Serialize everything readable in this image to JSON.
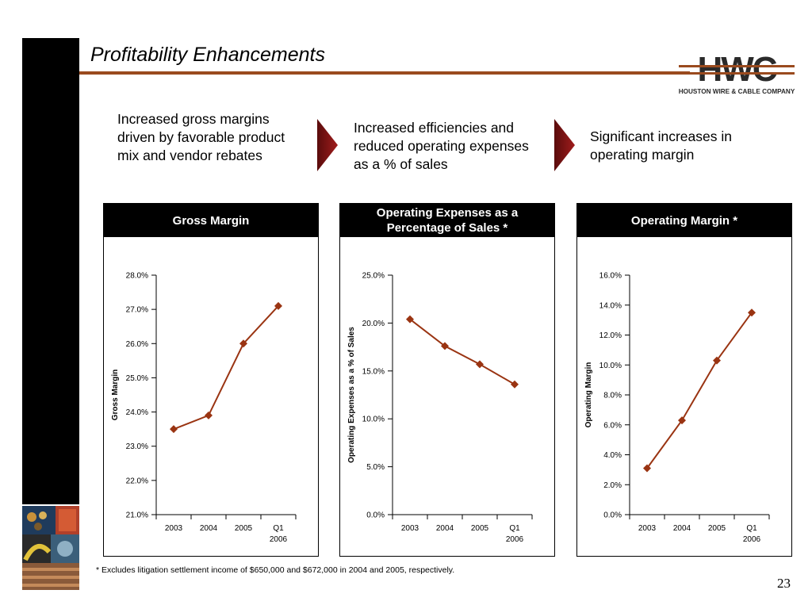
{
  "slide": {
    "title": "Profitability Enhancements",
    "page_number": "23",
    "footnote": "* Excludes litigation settlement income of $650,000 and $672,000 in 2004 and 2005, respectively."
  },
  "logo": {
    "name": "HWC",
    "tagline": "HOUSTON WIRE & CABLE COMPANY"
  },
  "points": [
    "Increased gross margins driven by favorable product mix and vendor rebates",
    "Increased efficiencies and reduced operating expenses as a % of sales",
    "Significant increases in operating margin"
  ],
  "colors": {
    "accent": "#9a4a1e",
    "series": "#9a3412",
    "arrow": "#8b1a1a"
  },
  "chart_data": [
    {
      "type": "line",
      "title": "Gross Margin",
      "ylabel": "Gross Margin",
      "categories": [
        "2003",
        "2004",
        "2005",
        "Q1 2006"
      ],
      "series": [
        {
          "values": [
            23.5,
            23.9,
            26.0,
            27.1
          ]
        }
      ],
      "ylim": [
        21.0,
        28.0
      ],
      "yticks": [
        "21.0%",
        "22.0%",
        "23.0%",
        "24.0%",
        "25.0%",
        "26.0%",
        "27.0%",
        "28.0%"
      ],
      "grid": false
    },
    {
      "type": "line",
      "title": "Operating Expenses as a Percentage of Sales *",
      "ylabel": "Operating Expenses as a % of Sales",
      "categories": [
        "2003",
        "2004",
        "2005",
        "Q1 2006"
      ],
      "series": [
        {
          "values": [
            20.4,
            17.6,
            15.7,
            13.6
          ]
        }
      ],
      "ylim": [
        0.0,
        25.0
      ],
      "yticks": [
        "0.0%",
        "5.0%",
        "10.0%",
        "15.0%",
        "20.0%",
        "25.0%"
      ],
      "grid": false
    },
    {
      "type": "line",
      "title": "Operating Margin *",
      "ylabel": "Operating Margin",
      "categories": [
        "2003",
        "2004",
        "2005",
        "Q1 2006"
      ],
      "series": [
        {
          "values": [
            3.1,
            6.3,
            10.3,
            13.5
          ]
        }
      ],
      "ylim": [
        0.0,
        16.0
      ],
      "yticks": [
        "0.0%",
        "2.0%",
        "4.0%",
        "6.0%",
        "8.0%",
        "10.0%",
        "12.0%",
        "14.0%",
        "16.0%"
      ],
      "grid": false
    }
  ]
}
